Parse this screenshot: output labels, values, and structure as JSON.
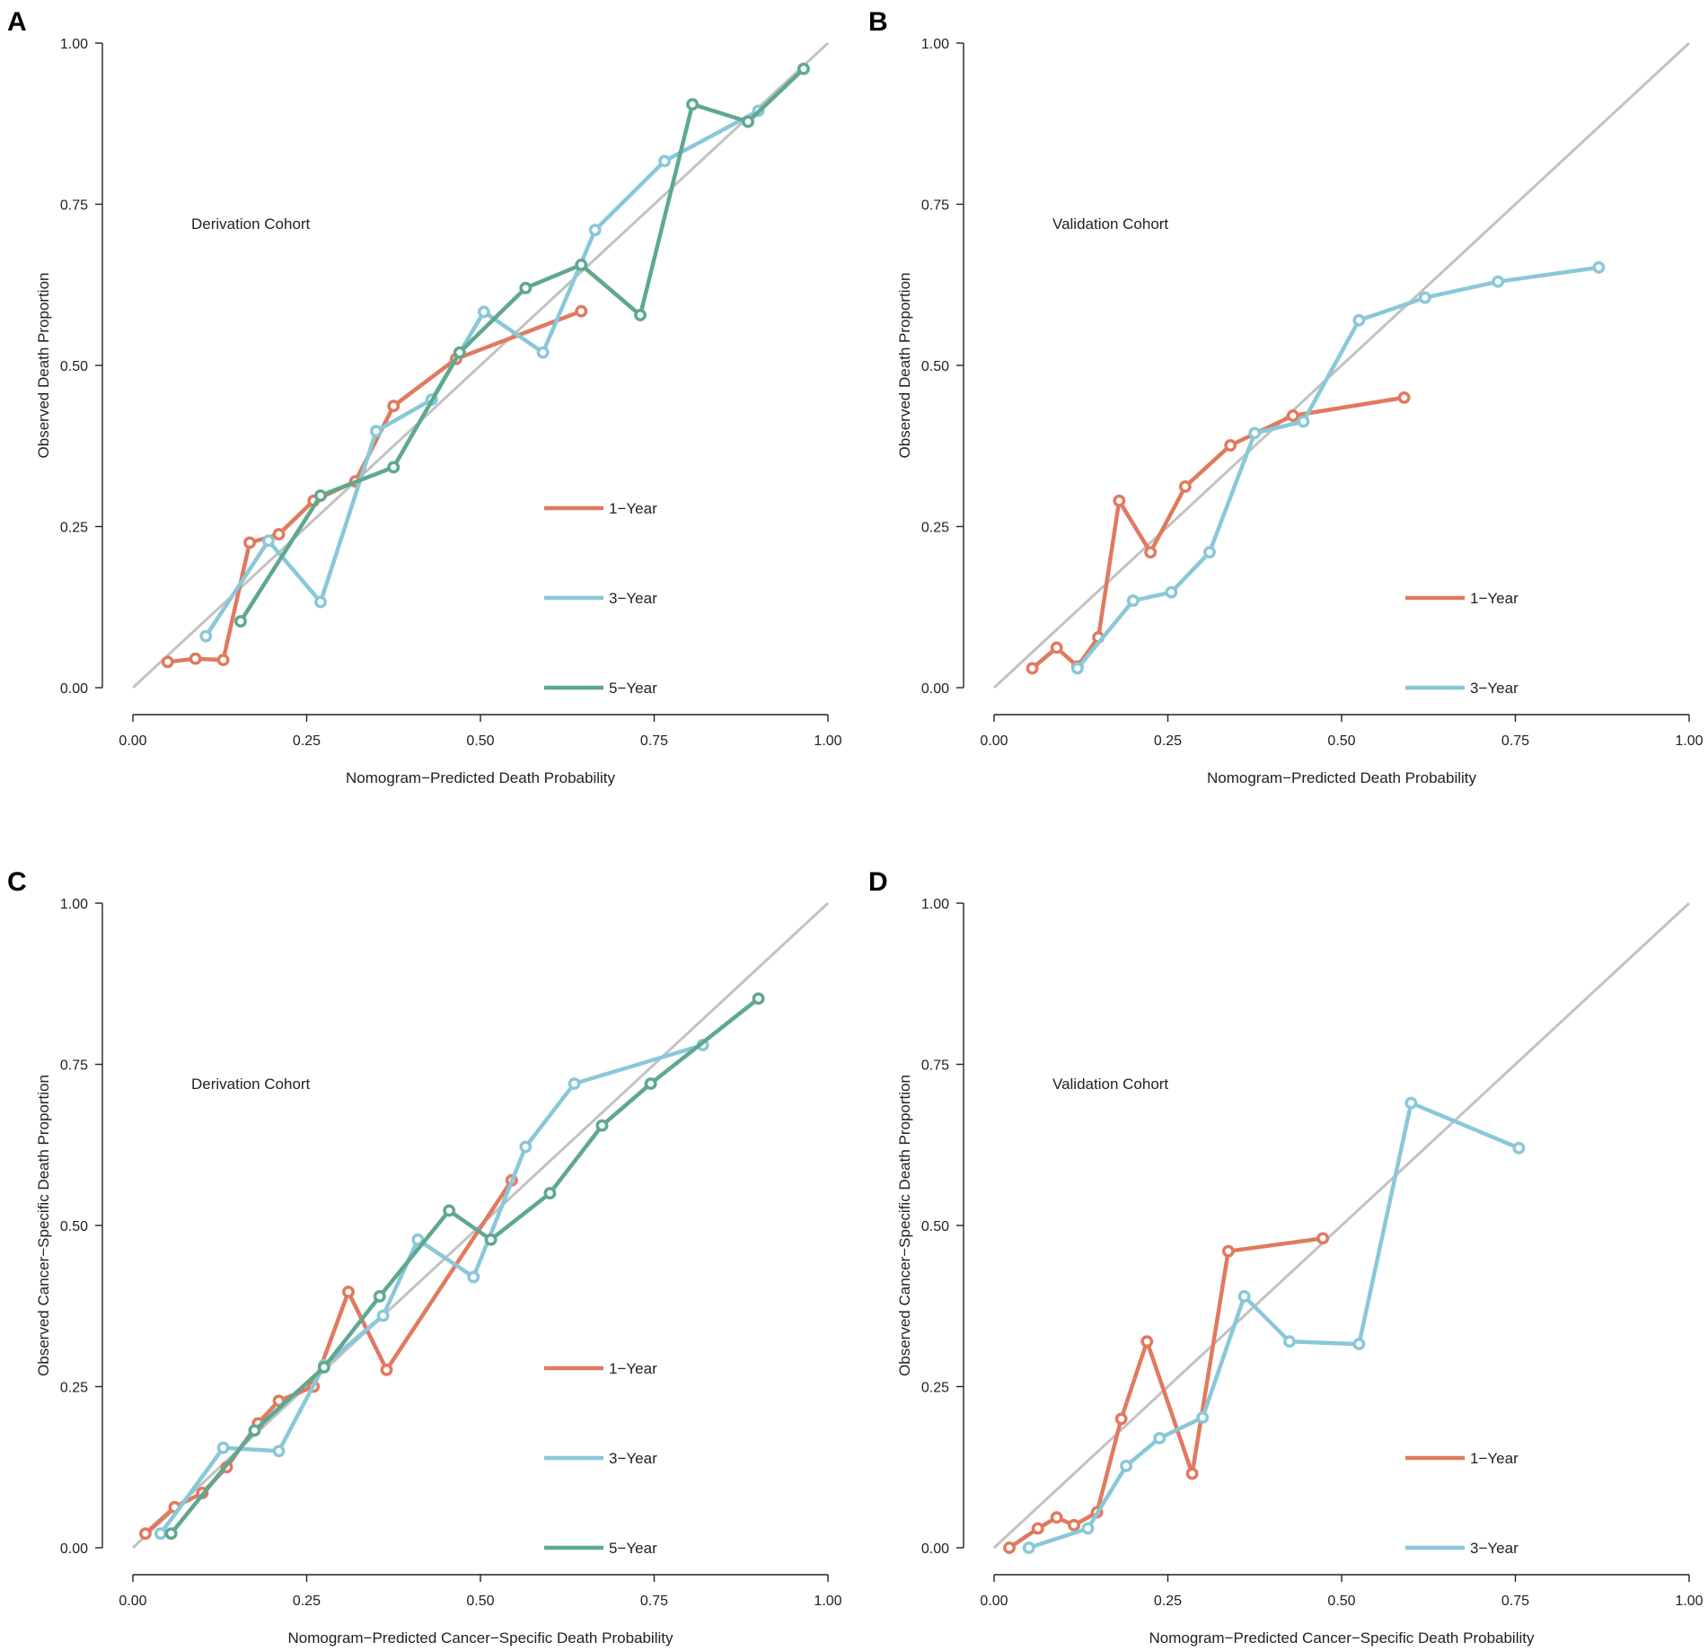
{
  "colors": {
    "one_year": "#e07a5f",
    "three_year": "#89c8d8",
    "five_year": "#5fa88f",
    "diagonal": "#c2c2c2",
    "axis": "#222222"
  },
  "chart_data": [
    {
      "type": "line",
      "panel": "A",
      "title": "",
      "cohort_label": "Derivation Cohort",
      "xlabel": "Nomogram−Predicted Death Probability",
      "ylabel": "Observed Death Proportion",
      "xlim": [
        0,
        1
      ],
      "ylim": [
        0,
        1
      ],
      "xticks": [
        "0.00",
        "0.25",
        "0.50",
        "0.75",
        "1.00"
      ],
      "yticks": [
        "0.00",
        "0.25",
        "0.50",
        "0.75",
        "1.00"
      ],
      "reference_line": "diagonal",
      "series": [
        {
          "name": "1−Year",
          "color_key": "one_year",
          "x": [
            0.05,
            0.09,
            0.13,
            0.168,
            0.21,
            0.26,
            0.32,
            0.375,
            0.465,
            0.645
          ],
          "y": [
            0.04,
            0.045,
            0.043,
            0.225,
            0.238,
            0.29,
            0.32,
            0.437,
            0.51,
            0.584
          ]
        },
        {
          "name": "3−Year",
          "color_key": "three_year",
          "x": [
            0.105,
            0.195,
            0.27,
            0.35,
            0.43,
            0.505,
            0.59,
            0.665,
            0.765,
            0.9
          ],
          "y": [
            0.08,
            0.228,
            0.133,
            0.398,
            0.447,
            0.583,
            0.52,
            0.71,
            0.817,
            0.895
          ]
        },
        {
          "name": "5−Year",
          "color_key": "five_year",
          "x": [
            0.155,
            0.27,
            0.375,
            0.47,
            0.565,
            0.645,
            0.73,
            0.805,
            0.885,
            0.965
          ],
          "y": [
            0.103,
            0.298,
            0.342,
            0.52,
            0.62,
            0.656,
            0.578,
            0.905,
            0.878,
            0.96
          ]
        }
      ]
    },
    {
      "type": "line",
      "panel": "B",
      "title": "",
      "cohort_label": "Validation Cohort",
      "xlabel": "Nomogram−Predicted Death Probability",
      "ylabel": "Observed Death Proportion",
      "xlim": [
        0,
        1
      ],
      "ylim": [
        0,
        1
      ],
      "xticks": [
        "0.00",
        "0.25",
        "0.50",
        "0.75",
        "1.00"
      ],
      "yticks": [
        "0.00",
        "0.25",
        "0.50",
        "0.75",
        "1.00"
      ],
      "reference_line": "diagonal",
      "series": [
        {
          "name": "1−Year",
          "color_key": "one_year",
          "x": [
            0.055,
            0.09,
            0.12,
            0.15,
            0.18,
            0.225,
            0.275,
            0.34,
            0.43,
            0.59
          ],
          "y": [
            0.03,
            0.062,
            0.033,
            0.078,
            0.29,
            0.21,
            0.312,
            0.376,
            0.422,
            0.45
          ]
        },
        {
          "name": "3−Year",
          "color_key": "three_year",
          "x": [
            0.12,
            0.2,
            0.255,
            0.31,
            0.375,
            0.445,
            0.525,
            0.62,
            0.725,
            0.87
          ],
          "y": [
            0.03,
            0.135,
            0.148,
            0.21,
            0.395,
            0.413,
            0.57,
            0.605,
            0.63,
            0.652
          ]
        }
      ]
    },
    {
      "type": "line",
      "panel": "C",
      "title": "",
      "cohort_label": "Derivation Cohort",
      "xlabel": "Nomogram−Predicted Cancer−Specific Death Probability",
      "ylabel": "Observed Cancer−Specific Death Proportion",
      "xlim": [
        0,
        1
      ],
      "ylim": [
        0,
        1
      ],
      "xticks": [
        "0.00",
        "0.25",
        "0.50",
        "0.75",
        "1.00"
      ],
      "yticks": [
        "0.00",
        "0.25",
        "0.50",
        "0.75",
        "1.00"
      ],
      "reference_line": "diagonal",
      "series": [
        {
          "name": "1−Year",
          "color_key": "one_year",
          "x": [
            0.018,
            0.06,
            0.1,
            0.135,
            0.18,
            0.21,
            0.26,
            0.31,
            0.365,
            0.545
          ],
          "y": [
            0.022,
            0.063,
            0.085,
            0.125,
            0.193,
            0.228,
            0.25,
            0.397,
            0.276,
            0.57
          ]
        },
        {
          "name": "3−Year",
          "color_key": "three_year",
          "x": [
            0.04,
            0.13,
            0.21,
            0.275,
            0.36,
            0.41,
            0.49,
            0.565,
            0.635,
            0.82
          ],
          "y": [
            0.022,
            0.155,
            0.15,
            0.283,
            0.36,
            0.478,
            0.42,
            0.622,
            0.72,
            0.78
          ]
        },
        {
          "name": "5−Year",
          "color_key": "five_year",
          "x": [
            0.055,
            0.175,
            0.275,
            0.355,
            0.455,
            0.515,
            0.6,
            0.675,
            0.745,
            0.9
          ],
          "y": [
            0.022,
            0.182,
            0.28,
            0.39,
            0.523,
            0.478,
            0.55,
            0.655,
            0.72,
            0.852
          ]
        }
      ]
    },
    {
      "type": "line",
      "panel": "D",
      "title": "",
      "cohort_label": "Validation Cohort",
      "xlabel": "Nomogram−Predicted Cancer−Specific Death Probability",
      "ylabel": "Observed Cancer−Specific Death Proportion",
      "xlim": [
        0,
        1
      ],
      "ylim": [
        0,
        1
      ],
      "xticks": [
        "0.00",
        "0.25",
        "0.50",
        "0.75",
        "1.00"
      ],
      "yticks": [
        "0.00",
        "0.25",
        "0.50",
        "0.75",
        "1.00"
      ],
      "reference_line": "diagonal",
      "series": [
        {
          "name": "1−Year",
          "color_key": "one_year",
          "x": [
            0.022,
            0.063,
            0.09,
            0.115,
            0.148,
            0.183,
            0.22,
            0.285,
            0.337,
            0.473
          ],
          "y": [
            0.0,
            0.03,
            0.047,
            0.035,
            0.055,
            0.2,
            0.32,
            0.115,
            0.46,
            0.48
          ]
        },
        {
          "name": "3−Year",
          "color_key": "three_year",
          "x": [
            0.05,
            0.135,
            0.19,
            0.238,
            0.3,
            0.36,
            0.425,
            0.525,
            0.6,
            0.755
          ],
          "y": [
            0.0,
            0.03,
            0.127,
            0.17,
            0.202,
            0.39,
            0.32,
            0.316,
            0.69,
            0.62
          ]
        }
      ]
    }
  ]
}
